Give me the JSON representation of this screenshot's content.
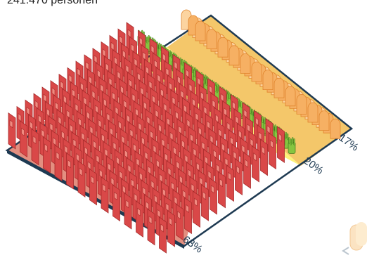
{
  "total_label": "241.470 personen",
  "chart_data": {
    "type": "bar",
    "title": "241.470 personen",
    "categories": [
      "rood",
      "geel/groen",
      "oranje"
    ],
    "values": [
      63,
      20,
      17
    ],
    "unit": "%",
    "value_labels": [
      "63%",
      "20%",
      "17%"
    ],
    "series": [
      {
        "values": [
          63,
          20,
          17
        ]
      }
    ],
    "colors": {
      "red_block": "#d94848",
      "red_floor": "#e38f80",
      "yellow_floor": "#fcf27a",
      "green_block": "#86c540",
      "orange_floor": "#f4c76a",
      "orange_block": "#f6b063",
      "board_edge": "#1e3a52"
    }
  },
  "nav": {
    "icon": "chevron-left-icon"
  }
}
